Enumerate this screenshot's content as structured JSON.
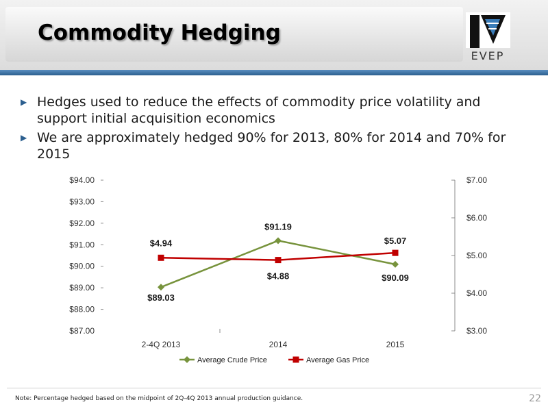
{
  "header": {
    "title": "Commodity Hedging",
    "logo_text": "EVEP"
  },
  "bullets": [
    {
      "text": "Hedges used to reduce the effects of commodity price volatility and support initial acquisition economics"
    },
    {
      "text": "We are approximately hedged 90% for 2013, 80% for 2014 and 70% for 2015"
    }
  ],
  "chart_data": {
    "type": "line",
    "categories": [
      "2-4Q 2013",
      "2014",
      "2015"
    ],
    "series": [
      {
        "name": "Average Crude Price",
        "axis": "left",
        "values": [
          89.03,
          91.19,
          90.09
        ],
        "labels": [
          "$89.03",
          "$91.19",
          "$90.09"
        ],
        "color": "#77933c",
        "marker": "diamond"
      },
      {
        "name": "Average Gas Price",
        "axis": "right",
        "values": [
          4.94,
          4.88,
          5.07
        ],
        "labels": [
          "$4.94",
          "$4.88",
          "$5.07"
        ],
        "color": "#c00000",
        "marker": "square"
      }
    ],
    "left_axis": {
      "ylim": [
        87,
        94
      ],
      "ticks": [
        "$94.00",
        "$93.00",
        "$92.00",
        "$91.00",
        "$90.00",
        "$89.00",
        "$88.00",
        "$87.00"
      ]
    },
    "right_axis": {
      "ylim": [
        3,
        7
      ],
      "ticks": [
        "$7.00",
        "$6.00",
        "$5.00",
        "$4.00",
        "$3.00"
      ]
    },
    "legend_position": "bottom"
  },
  "footer": {
    "note": "Note: Percentage hedged based on the midpoint of 2Q-4Q 2013 annual production guidance.",
    "page_number": "22"
  }
}
